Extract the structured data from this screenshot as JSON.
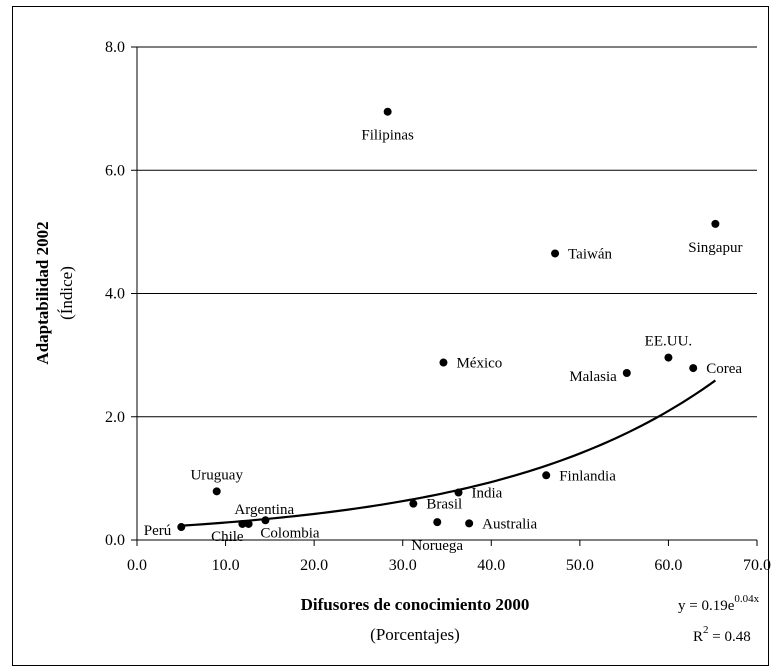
{
  "chart_data": {
    "type": "scatter",
    "xlabel": "Difusores de conocimiento 2000",
    "xlabel_sub": "(Porcentajes)",
    "ylabel": "Adaptabilidad 2002",
    "ylabel_sub": "(Índice)",
    "xlim": [
      0,
      70
    ],
    "ylim": [
      0,
      8
    ],
    "x_ticks": [
      "0.0",
      "10.0",
      "20.0",
      "30.0",
      "40.0",
      "50.0",
      "60.0",
      "70.0"
    ],
    "y_ticks": [
      "0.0",
      "2.0",
      "4.0",
      "6.0",
      "8.0"
    ],
    "grid": "horizontal",
    "points": [
      {
        "name": "Filipinas",
        "x": 28.3,
        "y": 6.95,
        "label_pos": "below"
      },
      {
        "name": "Singapur",
        "x": 65.3,
        "y": 5.13,
        "label_pos": "below"
      },
      {
        "name": "Taiwán",
        "x": 47.2,
        "y": 4.65,
        "label_pos": "right"
      },
      {
        "name": "México",
        "x": 34.6,
        "y": 2.88,
        "label_pos": "right"
      },
      {
        "name": "EE.UU.",
        "x": 60.0,
        "y": 2.96,
        "label_pos": "above"
      },
      {
        "name": "Corea",
        "x": 62.8,
        "y": 2.79,
        "label_pos": "right"
      },
      {
        "name": "Malasia",
        "x": 55.3,
        "y": 2.71,
        "label_pos": "left"
      },
      {
        "name": "Finlandia",
        "x": 46.2,
        "y": 1.05,
        "label_pos": "right"
      },
      {
        "name": "Uruguay",
        "x": 9.0,
        "y": 0.79,
        "label_pos": "above"
      },
      {
        "name": "India",
        "x": 36.3,
        "y": 0.77,
        "label_pos": "right"
      },
      {
        "name": "Brasil",
        "x": 31.2,
        "y": 0.59,
        "label_pos": "right"
      },
      {
        "name": "Argentina",
        "x": 11.9,
        "y": 0.26,
        "label_pos": "above-right"
      },
      {
        "name": "Chile",
        "x": 12.6,
        "y": 0.26,
        "label_pos": "below-left"
      },
      {
        "name": "Colombia",
        "x": 14.5,
        "y": 0.32,
        "label_pos": "below-right"
      },
      {
        "name": "Perú",
        "x": 5.0,
        "y": 0.21,
        "label_pos": "left"
      },
      {
        "name": "Noruega",
        "x": 33.9,
        "y": 0.29,
        "label_pos": "below"
      },
      {
        "name": "Australia",
        "x": 37.5,
        "y": 0.27,
        "label_pos": "right"
      }
    ],
    "trendline": {
      "type": "exponential",
      "a": 0.19,
      "b": 0.04,
      "x_range": [
        5,
        65.3
      ]
    },
    "equation": {
      "prefix": "y = 0.19e",
      "exponent": "0.04x",
      "r2_prefix": "R",
      "r2_sup": "2",
      "r2_value": " = 0.48"
    }
  }
}
